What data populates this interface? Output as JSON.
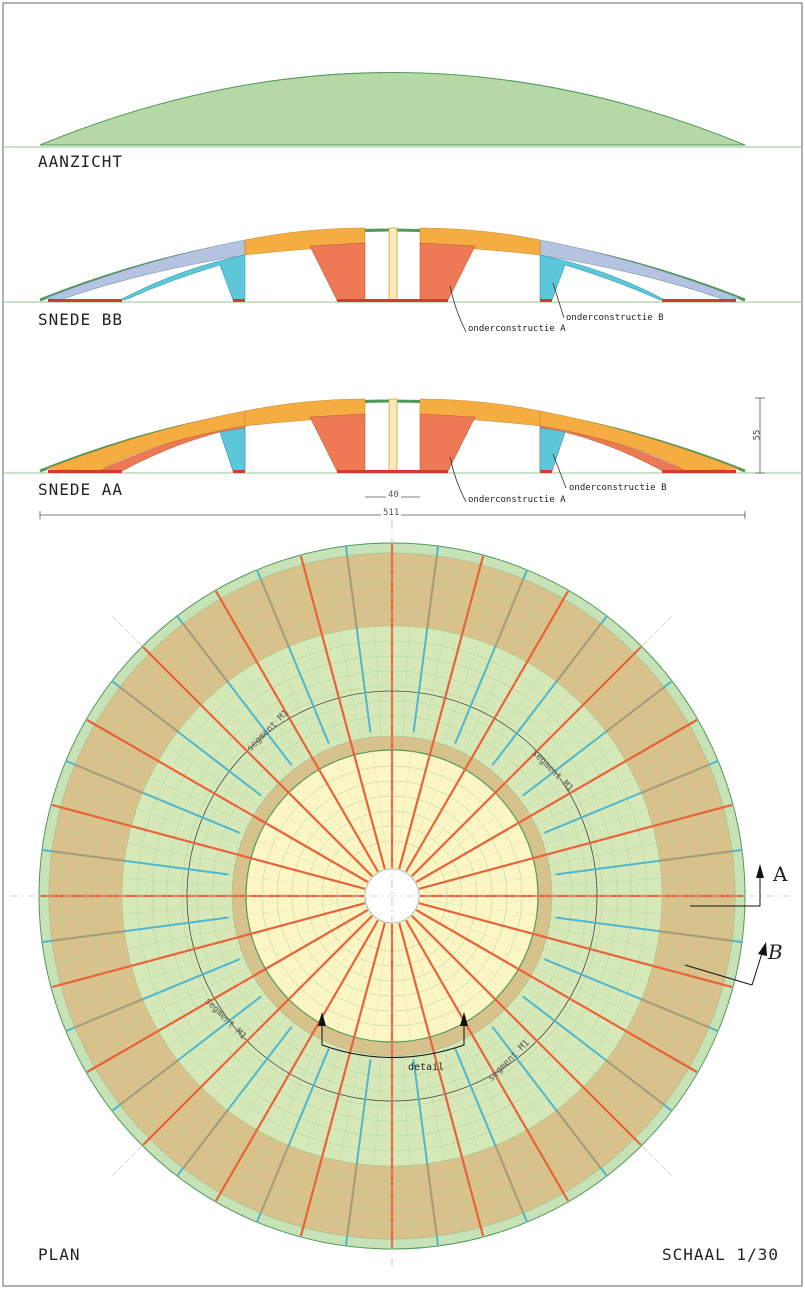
{
  "titles": {
    "aanzicht": "AANZICHT",
    "snede_bb": "SNEDE BB",
    "snede_aa": "SNEDE AA",
    "plan": "PLAN",
    "schaal": "SCHAAL 1/30"
  },
  "annotations": {
    "onderconstructie_a": "onderconstructie A",
    "onderconstructie_b": "onderconstructie B",
    "dim_height": "55",
    "dim_center": "40",
    "dim_total": "511",
    "segment": "segment M1",
    "detail": "detail",
    "section_a": "A",
    "section_b": "B"
  },
  "colors": {
    "view_fill": "#b5d8a6",
    "skin": "#4f9a58",
    "orange_light": "#f5ad42",
    "orange_red": "#ee7a55",
    "cyan": "#5bc7d8",
    "lavender": "#b3c3e0",
    "red_base": "#d63a2e",
    "plan_outer": "#d8c18a",
    "plan_green": "#d6e8b8",
    "plan_core": "#fbf6c4",
    "rib_red": "#e8623a",
    "rib_cyan": "#4fb7cd",
    "rib_grey": "#a39a78"
  }
}
